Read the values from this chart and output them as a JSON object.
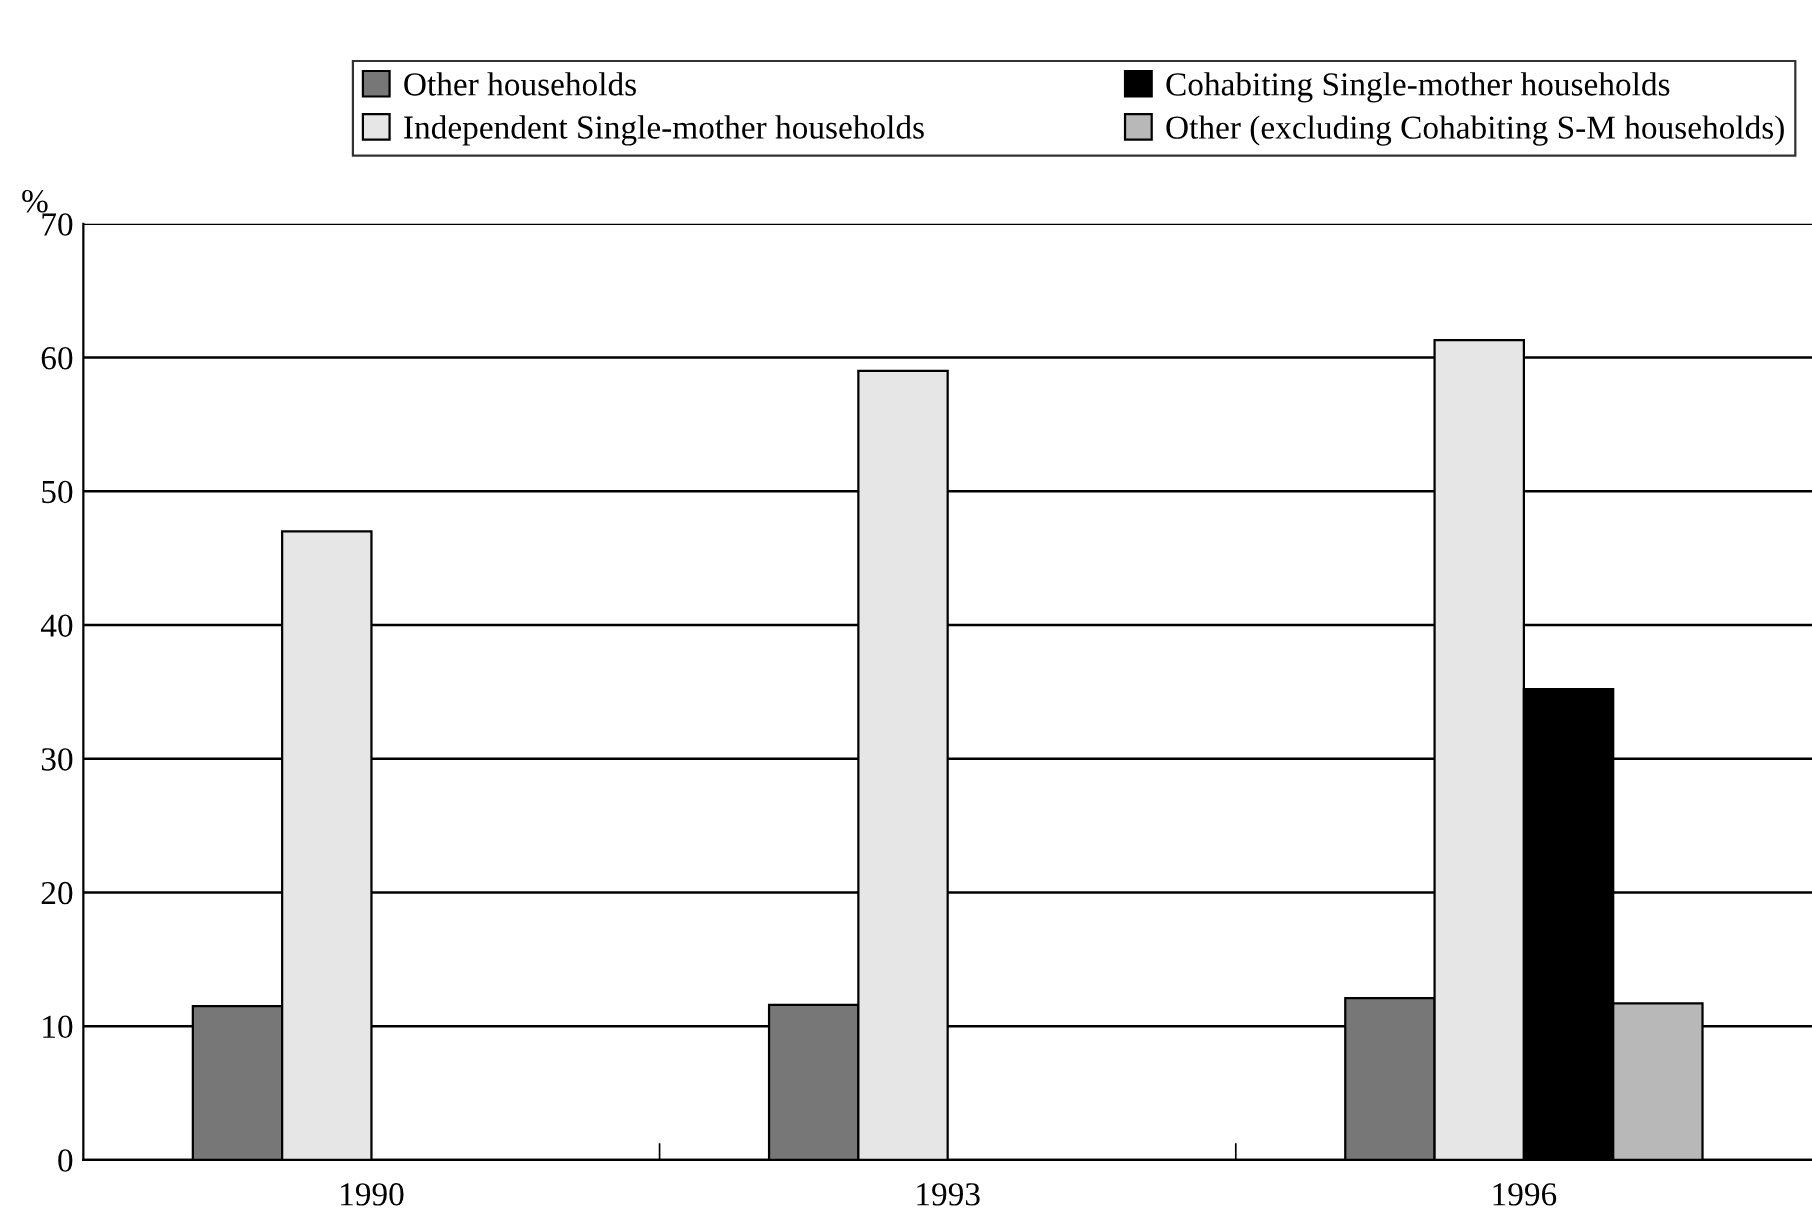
{
  "chart_data": {
    "type": "bar",
    "ylabel": "%",
    "categories": [
      "1990",
      "1993",
      "1996"
    ],
    "series": [
      {
        "name": "Other households",
        "color": "#777777",
        "values": [
          11.5,
          11.6,
          12.1
        ]
      },
      {
        "name": "Independent Single-mother households",
        "color": "#e6e6e6",
        "values": [
          47.0,
          59.0,
          61.3
        ]
      },
      {
        "name": "Cohabiting Single-mother households",
        "color": "#000000",
        "values": [
          null,
          null,
          35.2
        ]
      },
      {
        "name": "Other (excluding Cohabiting S-M households)",
        "color": "#b8b8b8",
        "values": [
          null,
          null,
          11.7
        ]
      }
    ],
    "ylim": [
      0,
      70
    ],
    "yticks": [
      0,
      10,
      20,
      30,
      40,
      50,
      60,
      70
    ],
    "grid": "y",
    "legend": "top"
  }
}
